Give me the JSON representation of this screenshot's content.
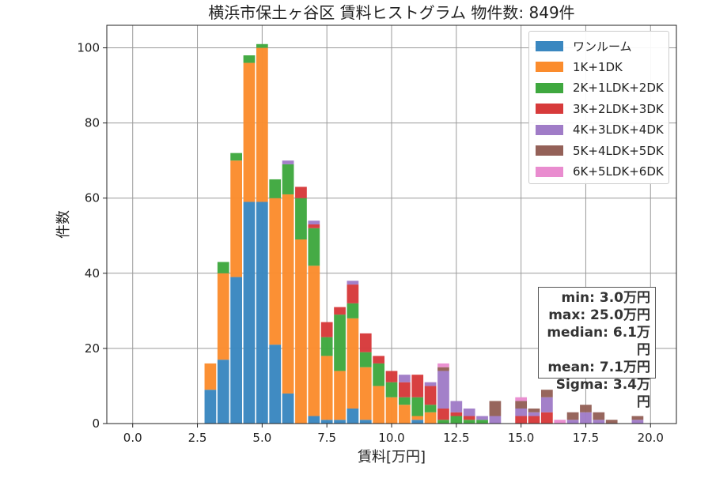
{
  "chart_data": {
    "type": "bar",
    "stacked": true,
    "title": "横浜市保土ヶ谷区 賃料ヒストグラム 物件数: 849件",
    "xlabel": "賃料[万円]",
    "ylabel": "件数",
    "xlim": [
      -1.0,
      21.0
    ],
    "ylim": [
      0,
      106
    ],
    "xticks": [
      0.0,
      2.5,
      5.0,
      7.5,
      10.0,
      12.5,
      15.0,
      17.5,
      20.0
    ],
    "xtick_labels": [
      "0.0",
      "2.5",
      "5.0",
      "7.5",
      "10.0",
      "12.5",
      "15.0",
      "17.5",
      "20.0"
    ],
    "yticks": [
      0,
      20,
      40,
      60,
      80,
      100
    ],
    "ytick_labels": [
      "0",
      "20",
      "40",
      "60",
      "80",
      "100"
    ],
    "grid": true,
    "legend_position": "top-right",
    "bin_width": 0.5,
    "bin_centers": [
      3.0,
      3.5,
      4.0,
      4.5,
      5.0,
      5.5,
      6.0,
      6.5,
      7.0,
      7.5,
      8.0,
      8.5,
      9.0,
      9.5,
      10.0,
      10.5,
      11.0,
      11.5,
      12.0,
      12.5,
      13.0,
      13.5,
      14.0,
      14.5,
      15.0,
      15.5,
      16.0,
      16.5,
      17.0,
      17.5,
      18.0,
      18.5,
      19.0,
      19.5
    ],
    "series": [
      {
        "name": "ワンルーム",
        "color": "#3a87c0",
        "values": [
          9,
          17,
          39,
          59,
          59,
          21,
          8,
          0,
          2,
          1,
          1,
          4,
          1,
          0,
          0,
          0,
          1,
          0,
          0,
          0,
          0,
          0,
          0,
          0,
          0,
          0,
          0,
          0,
          0,
          0,
          0,
          0,
          0,
          0
        ]
      },
      {
        "name": "1K+1DK",
        "color": "#fb8c2d",
        "values": [
          7,
          23,
          31,
          37,
          41,
          39,
          53,
          49,
          40,
          17,
          13,
          24,
          14,
          10,
          7,
          5,
          1,
          3,
          0,
          0,
          0,
          0,
          0,
          0,
          0,
          0,
          0,
          0,
          0,
          0,
          0,
          0,
          0,
          0
        ]
      },
      {
        "name": "2K+1LDK+2DK",
        "color": "#3fa83f",
        "values": [
          0,
          3,
          2,
          2,
          1,
          5,
          8,
          11,
          10,
          5,
          15,
          4,
          4,
          6,
          4,
          2,
          5,
          2,
          1,
          2,
          1,
          1,
          0,
          0,
          0,
          0,
          0,
          0,
          0,
          0,
          0,
          0,
          0,
          0
        ]
      },
      {
        "name": "3K+2LDK+3DK",
        "color": "#d73a3b",
        "values": [
          0,
          0,
          0,
          0,
          0,
          0,
          0,
          3,
          1,
          4,
          2,
          5,
          5,
          2,
          3,
          4,
          6,
          5,
          3,
          1,
          1,
          0,
          0,
          0,
          2,
          2,
          3,
          0,
          0,
          0,
          0,
          0,
          0,
          0
        ]
      },
      {
        "name": "4K+3LDK+4DK",
        "color": "#a07cc7",
        "values": [
          0,
          0,
          0,
          0,
          0,
          0,
          1,
          0,
          1,
          0,
          0,
          1,
          0,
          0,
          0,
          2,
          0,
          1,
          10,
          3,
          2,
          1,
          2,
          0,
          2,
          1,
          4,
          0,
          1,
          3,
          1,
          0,
          0,
          1
        ]
      },
      {
        "name": "5K+4LDK+5DK",
        "color": "#946158",
        "values": [
          0,
          0,
          0,
          0,
          0,
          0,
          0,
          0,
          0,
          0,
          0,
          0,
          0,
          0,
          0,
          0,
          0,
          0,
          1,
          0,
          0,
          0,
          4,
          0,
          2,
          1,
          2,
          0,
          2,
          2,
          2,
          1,
          0,
          1
        ]
      },
      {
        "name": "6K+5LDK+6DK",
        "color": "#e98ccf",
        "values": [
          0,
          0,
          0,
          0,
          0,
          0,
          0,
          0,
          0,
          0,
          0,
          0,
          0,
          0,
          0,
          0,
          0,
          0,
          1,
          0,
          0,
          0,
          0,
          0,
          1,
          0,
          0,
          1,
          0,
          0,
          0,
          0,
          0,
          0
        ]
      }
    ],
    "stats": [
      "min: 3.0万円",
      "max: 25.0万円",
      "median: 6.1万円",
      "mean: 7.1万円",
      "Sigma: 3.4万円"
    ]
  }
}
